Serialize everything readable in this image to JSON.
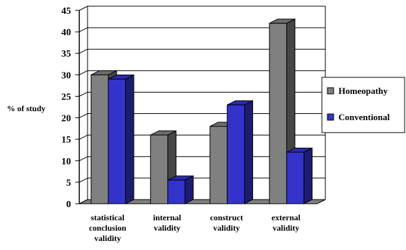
{
  "chart_data": {
    "type": "bar",
    "ylabel": "% of study",
    "ylim": [
      0,
      45
    ],
    "yticks": [
      0,
      5,
      10,
      15,
      20,
      25,
      30,
      35,
      40,
      45
    ],
    "grid": true,
    "legend_position": "right",
    "categories": [
      [
        "statistical",
        "conclusion",
        "validity"
      ],
      [
        "internal",
        "validity"
      ],
      [
        "construct",
        "validity"
      ],
      [
        "external",
        "validity"
      ]
    ],
    "series": [
      {
        "name": "Homeopathy",
        "values": [
          30,
          16,
          18,
          42
        ],
        "color": "#808080"
      },
      {
        "name": "Conventional",
        "values": [
          29,
          5.5,
          23,
          12
        ],
        "color": "#3333cc"
      }
    ]
  }
}
